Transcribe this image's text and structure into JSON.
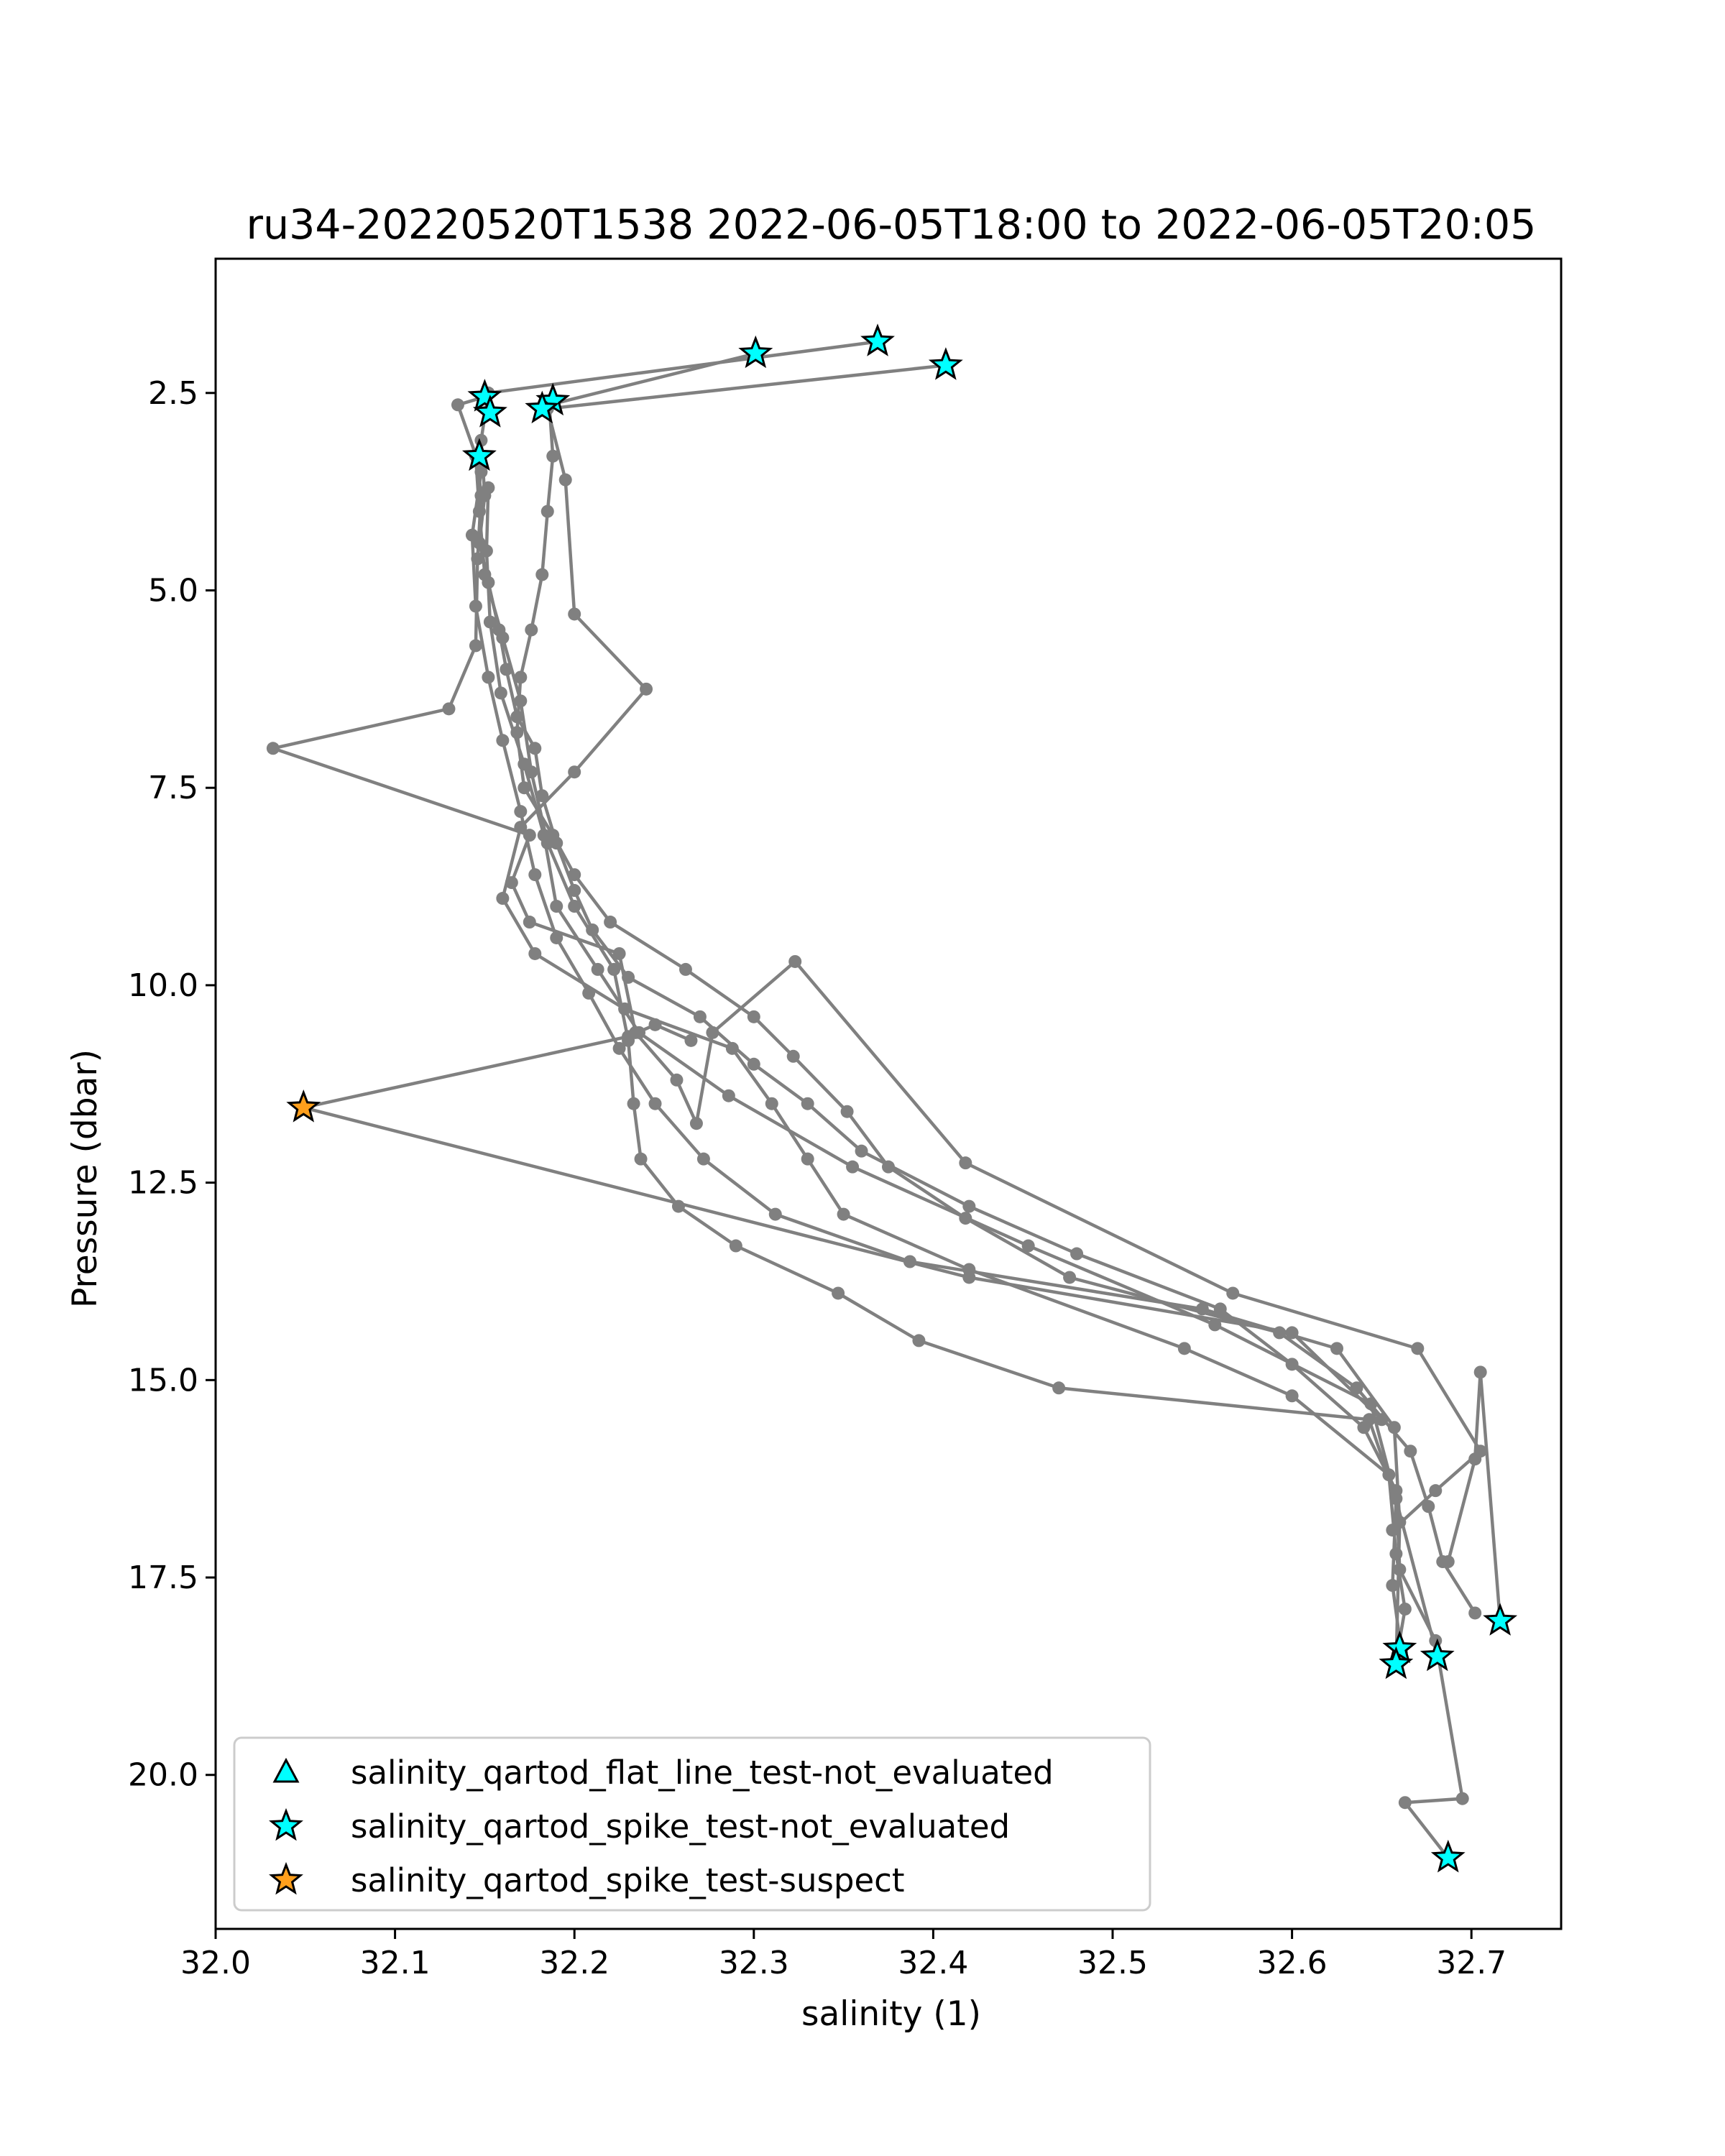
{
  "chart_data": {
    "type": "line",
    "title": "ru34-20220520T1538 2022-06-05T18:00 to 2022-06-05T20:05",
    "xlabel": "salinity (1)",
    "ylabel": "Pressure (dbar)",
    "xlim": [
      32.0,
      32.75
    ],
    "ylim": [
      21.95,
      0.8
    ],
    "y_inverted": true,
    "grid": false,
    "x_ticks": [
      32.0,
      32.1,
      32.2,
      32.3,
      32.4,
      32.5,
      32.6,
      32.7
    ],
    "x_tick_labels": [
      "32.0",
      "32.1",
      "32.2",
      "32.3",
      "32.4",
      "32.5",
      "32.6",
      "32.7"
    ],
    "y_ticks": [
      2.5,
      5.0,
      7.5,
      10.0,
      12.5,
      15.0,
      17.5,
      20.0
    ],
    "y_tick_labels": [
      "2.5",
      "5.0",
      "7.5",
      "10.0",
      "12.5",
      "15.0",
      "17.5",
      "20.0"
    ],
    "line_color": "#808080",
    "series": [
      {
        "x": [
          32.369,
          32.152,
          32.148,
          32.15,
          32.147,
          32.152,
          32.158,
          32.162,
          32.168,
          32.178,
          32.182,
          32.19,
          32.2,
          32.21,
          32.23,
          32.27,
          32.3,
          32.33,
          32.36,
          32.42,
          32.48,
          32.56,
          32.6,
          32.64,
          32.658,
          32.66,
          32.68,
          32.695,
          32.663,
          32.687
        ],
        "y": [
          1.85,
          2.5,
          3.1,
          3.8,
          4.4,
          4.9,
          5.5,
          6.0,
          6.6,
          7.0,
          7.6,
          8.2,
          8.8,
          9.3,
          9.9,
          10.4,
          11.0,
          11.5,
          12.1,
          12.8,
          13.4,
          14.1,
          14.8,
          15.6,
          16.4,
          17.4,
          18.3,
          20.3,
          20.35,
          21.05
        ]
      },
      {
        "x": [
          32.301,
          32.186,
          32.188,
          32.185,
          32.182,
          32.176,
          32.17,
          32.168,
          32.172,
          32.188,
          32.2,
          32.22,
          32.262,
          32.3,
          32.322,
          32.352,
          32.375,
          32.418,
          32.476,
          32.593,
          32.636,
          32.666,
          32.676,
          32.684,
          32.702
        ],
        "y": [
          2.0,
          2.65,
          3.3,
          4.0,
          4.8,
          5.5,
          6.1,
          6.8,
          7.5,
          8.1,
          8.6,
          9.2,
          9.8,
          10.4,
          10.9,
          11.6,
          12.3,
          12.95,
          13.7,
          14.4,
          15.1,
          15.9,
          16.6,
          17.3,
          17.95
        ]
      },
      {
        "x": [
          32.407,
          32.185,
          32.195,
          32.2,
          32.24,
          32.2,
          32.17,
          32.16,
          32.178,
          32.228,
          32.288,
          32.31,
          32.33,
          32.35,
          32.42,
          32.54,
          32.6,
          32.654,
          32.658,
          32.663,
          32.658
        ],
        "y": [
          2.15,
          2.7,
          3.6,
          5.3,
          6.25,
          7.3,
          8.0,
          8.9,
          9.6,
          10.3,
          10.8,
          11.5,
          12.2,
          12.9,
          13.6,
          14.6,
          15.2,
          16.2,
          17.2,
          17.9,
          18.55
        ]
      },
      {
        "x": [
          32.15,
          32.135,
          32.146,
          32.148,
          32.146,
          32.145,
          32.13,
          32.032,
          32.175,
          32.165,
          32.175,
          32.225,
          32.234,
          32.257,
          32.268,
          32.277,
          32.323,
          32.418,
          32.567,
          32.67,
          32.705,
          32.68,
          32.656
        ],
        "y": [
          2.55,
          2.65,
          3.35,
          3.8,
          4.6,
          5.7,
          6.5,
          7.0,
          8.1,
          8.7,
          9.2,
          9.6,
          10.6,
          11.2,
          11.75,
          10.6,
          9.7,
          12.25,
          13.9,
          14.6,
          15.9,
          16.4,
          16.9
        ]
      },
      {
        "x": [
          32.145,
          32.147,
          32.15,
          32.16,
          32.17,
          32.176,
          32.185,
          32.2,
          32.222,
          32.23,
          32.233,
          32.237,
          32.258,
          32.29,
          32.347,
          32.392,
          32.47,
          32.643,
          32.658,
          32.656,
          32.661
        ],
        "y": [
          3.3,
          4.0,
          4.8,
          5.6,
          6.4,
          7.3,
          8.2,
          9.0,
          9.8,
          10.7,
          11.5,
          12.2,
          12.8,
          13.3,
          13.9,
          14.5,
          15.1,
          15.5,
          16.5,
          17.6,
          18.45
        ]
      },
      {
        "x": [
          32.148,
          32.143,
          32.145,
          32.152,
          32.16,
          32.17,
          32.178,
          32.19,
          32.208,
          32.225,
          32.245,
          32.272,
          32.312,
          32.387,
          32.55,
          32.625,
          32.657,
          32.66,
          32.658
        ],
        "y": [
          3.5,
          4.3,
          5.2,
          6.1,
          6.9,
          7.8,
          8.6,
          9.4,
          10.1,
          10.8,
          11.5,
          12.2,
          12.9,
          13.5,
          14.1,
          14.6,
          15.6,
          16.8,
          18.6
        ]
      },
      {
        "x": [
          32.152,
          32.151,
          32.153,
          32.159,
          32.172,
          32.183,
          32.19,
          32.213,
          32.236,
          32.286,
          32.355,
          32.453,
          32.557,
          32.644,
          32.681
        ],
        "y": [
          3.7,
          4.5,
          5.4,
          6.3,
          7.2,
          8.1,
          9.0,
          9.8,
          10.6,
          11.4,
          12.3,
          13.3,
          14.3,
          15.3,
          18.5
        ]
      },
      {
        "x": [
          32.687,
          32.702,
          32.705,
          32.716
        ],
        "y": [
          17.3,
          16.0,
          14.9,
          18.05
        ]
      },
      {
        "x": [
          32.049,
          32.23,
          32.245,
          32.265
        ],
        "y": [
          11.55,
          10.65,
          10.5,
          10.7
        ]
      },
      {
        "x": [
          32.049,
          32.42,
          32.6,
          32.65
        ],
        "y": [
          11.55,
          13.7,
          14.4,
          15.5
        ]
      }
    ],
    "flags": [
      {
        "category": "salinity_qartod_spike_test-not_evaluated",
        "points": [
          [
            32.369,
            1.85
          ],
          [
            32.301,
            2.0
          ],
          [
            32.407,
            2.15
          ],
          [
            32.15,
            2.55
          ],
          [
            32.188,
            2.6
          ],
          [
            32.153,
            2.75
          ],
          [
            32.182,
            2.7
          ],
          [
            32.147,
            3.3
          ],
          [
            32.716,
            18.05
          ],
          [
            32.66,
            18.4
          ],
          [
            32.681,
            18.5
          ],
          [
            32.658,
            18.6
          ],
          [
            32.687,
            21.05
          ]
        ]
      },
      {
        "category": "salinity_qartod_spike_test-suspect",
        "points": [
          [
            32.049,
            11.55
          ]
        ]
      }
    ],
    "legend": {
      "position": "lower-left",
      "entries": [
        {
          "label": "salinity_qartod_flat_line_test-not_evaluated",
          "marker": "triangle",
          "color": "#00ffff"
        },
        {
          "label": "salinity_qartod_spike_test-not_evaluated",
          "marker": "star",
          "color": "#00ffff"
        },
        {
          "label": "salinity_qartod_spike_test-suspect",
          "marker": "star",
          "color": "#ff9f1c"
        }
      ]
    }
  }
}
